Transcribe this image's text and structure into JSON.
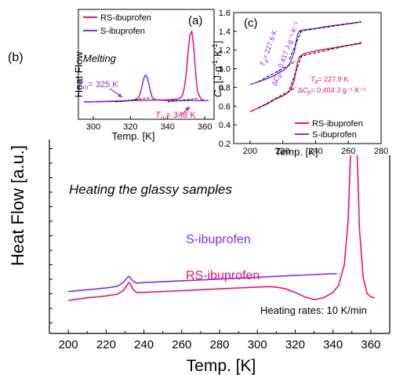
{
  "chart_data": [
    {
      "type": "line",
      "panel": "(b)",
      "xlabel": "Temp. [K]",
      "ylabel": "Heat Flow [a.u.]",
      "xlim": [
        190,
        370
      ],
      "xticks": [
        200,
        220,
        240,
        260,
        280,
        300,
        320,
        340,
        360
      ],
      "y_ticks_labeled": false,
      "annotations": [
        "Heating the glassy samples",
        "Heating rates: 10 K/min"
      ],
      "series": [
        {
          "name": "S-ibuprofen",
          "color": "#7b2ff2",
          "x": [
            200,
            210,
            220,
            226,
            229,
            231,
            232,
            233,
            234,
            236,
            240,
            250,
            260,
            280,
            300,
            320,
            340,
            342
          ],
          "y": [
            0.1,
            0.12,
            0.14,
            0.16,
            0.2,
            0.25,
            0.27,
            0.25,
            0.22,
            0.195,
            0.2,
            0.21,
            0.22,
            0.24,
            0.26,
            0.28,
            0.3,
            0.3
          ]
        },
        {
          "name": "RS-ibuprofen",
          "color": "#e8126e",
          "x": [
            200,
            210,
            220,
            226,
            229,
            231,
            232,
            233,
            234,
            236,
            240,
            260,
            280,
            300,
            305,
            310,
            315,
            320,
            325,
            330,
            335,
            340,
            343,
            346,
            348,
            349,
            350,
            351,
            352,
            353,
            354,
            356,
            358,
            360,
            362
          ],
          "y": [
            0.0,
            0.03,
            0.05,
            0.07,
            0.11,
            0.17,
            0.2,
            0.18,
            0.13,
            0.09,
            0.09,
            0.11,
            0.13,
            0.15,
            0.155,
            0.15,
            0.13,
            0.09,
            0.04,
            0.01,
            0.03,
            0.09,
            0.17,
            0.4,
            0.9,
            1.5,
            2.0,
            2.3,
            2.1,
            1.5,
            0.8,
            0.25,
            0.08,
            0.04,
            0.03
          ]
        }
      ]
    },
    {
      "type": "line",
      "panel": "(a)",
      "xlabel": "Temp. [K]",
      "ylabel": "Heat Flow",
      "xlim": [
        292,
        365
      ],
      "xticks": [
        300,
        320,
        340,
        360
      ],
      "annotations": [
        "Melting"
      ],
      "melting_points": {
        "S-ibuprofen": "T_m = 325 K",
        "RS-ibuprofen": "T_m = 348 K"
      },
      "legend": [
        "RS-ibuprofen",
        "S-ibuprofen"
      ],
      "legend_position": "top-left",
      "series": [
        {
          "name": "RS-ibuprofen",
          "color": "#e8126e",
          "x": [
            295,
            320,
            340,
            345,
            347,
            348,
            349,
            350,
            351,
            352,
            353,
            354,
            355,
            356,
            358,
            360,
            362
          ],
          "y": [
            0.0,
            0.02,
            0.03,
            0.04,
            0.06,
            0.1,
            0.2,
            0.4,
            0.7,
            0.95,
            1.0,
            0.8,
            0.45,
            0.15,
            0.04,
            0.02,
            0.02
          ]
        },
        {
          "name": "S-ibuprofen",
          "color": "#7b2ff2",
          "x": [
            295,
            315,
            320,
            322,
            324,
            325,
            326,
            327,
            328,
            329,
            330,
            331,
            332,
            334,
            336,
            340,
            350,
            360,
            362
          ],
          "y": [
            0.0,
            0.01,
            0.02,
            0.03,
            0.05,
            0.1,
            0.2,
            0.32,
            0.38,
            0.35,
            0.25,
            0.12,
            0.05,
            0.03,
            0.025,
            0.02,
            0.02,
            0.02,
            0.02
          ]
        }
      ]
    },
    {
      "type": "line",
      "panel": "(c)",
      "xlabel": "Temp. [K]",
      "ylabel": "C_p [J·g⁻¹·K⁻¹]",
      "xlim": [
        190,
        280
      ],
      "ylim": [
        0.2,
        1.6
      ],
      "xticks": [
        200,
        220,
        240,
        260,
        280
      ],
      "yticks": [
        0.2,
        0.4,
        0.6,
        0.8,
        1.0,
        1.2,
        1.4,
        1.6
      ],
      "legend": [
        "RS-ibuprofen",
        "S-ibuprofen"
      ],
      "legend_position": "bottom-right",
      "glass_transitions": [
        {
          "series": "S-ibuprofen",
          "Tg": "T_g = 227.6 K",
          "dCp": "ΔC_p = 0.417 J·g⁻¹·K⁻¹"
        },
        {
          "series": "RS-ibuprofen",
          "Tg": "T_g = 227.9 K",
          "dCp": "ΔC_p = 0.404 J·g⁻¹·K⁻¹"
        }
      ],
      "series": [
        {
          "name": "S-ibuprofen",
          "color": "#7b2ff2",
          "x": [
            200,
            205,
            210,
            215,
            220,
            223,
            225,
            227,
            228,
            229,
            230,
            232,
            235,
            240,
            250,
            260,
            268
          ],
          "y": [
            0.83,
            0.86,
            0.89,
            0.93,
            0.98,
            1.02,
            1.08,
            1.18,
            1.28,
            1.36,
            1.4,
            1.41,
            1.42,
            1.43,
            1.46,
            1.48,
            1.5
          ]
        },
        {
          "name": "RS-ibuprofen",
          "color": "#e8126e",
          "x": [
            200,
            205,
            210,
            215,
            220,
            223,
            225,
            227,
            228,
            229,
            230,
            232,
            235,
            240,
            250,
            260,
            268
          ],
          "y": [
            0.54,
            0.58,
            0.62,
            0.67,
            0.71,
            0.74,
            0.78,
            0.88,
            0.98,
            1.07,
            1.12,
            1.15,
            1.17,
            1.19,
            1.22,
            1.25,
            1.27
          ]
        }
      ]
    }
  ],
  "labels": {
    "panel_b": "(b)",
    "heating_note": "Heating the glassy samples",
    "rates_note": "Heating rates: 10 K/min",
    "s_label": "S-ibuprofen",
    "rs_label": "RS-ibuprofen",
    "panel_a": "(a)",
    "melting": "Melting",
    "tm_s": "= 325 K",
    "tm_rs": "= 348 K",
    "panel_c": "(c)",
    "tg_s": "= 227.6 K",
    "dcp_s": "= 0.417 J·g⁻¹·K⁻¹",
    "tg_rs": "= 227.9 K",
    "dcp_rs": "= 0.404 J·g⁻¹·K⁻¹"
  }
}
